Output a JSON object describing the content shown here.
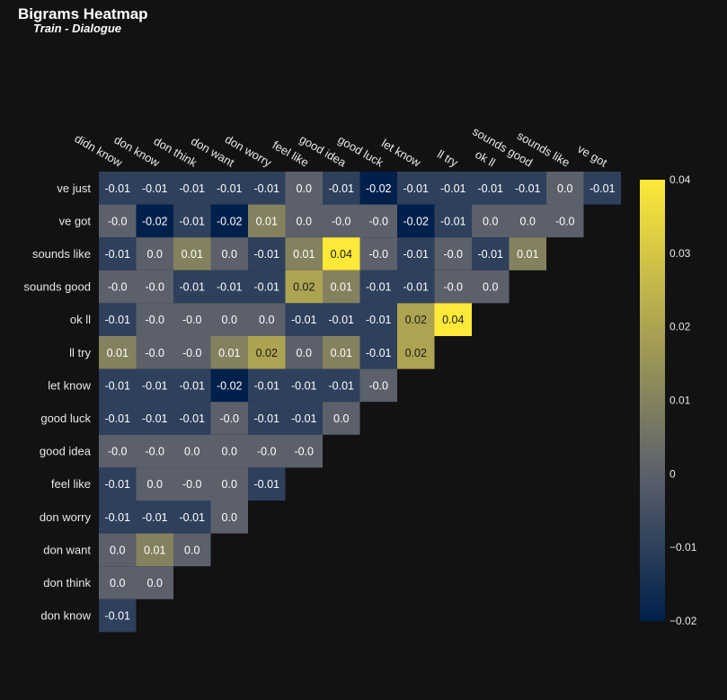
{
  "chart_data": {
    "type": "heatmap",
    "title": "Bigrams Heatmap",
    "subtitle": "Train - Dialogue",
    "x_categories": [
      "didn know",
      "don know",
      "don think",
      "don want",
      "don worry",
      "feel like",
      "good idea",
      "good luck",
      "let know",
      "ll try",
      "ok ll",
      "sounds good",
      "sounds like",
      "ve got"
    ],
    "y_categories": [
      "ve just",
      "ve got",
      "sounds like",
      "sounds good",
      "ok ll",
      "ll try",
      "let know",
      "good luck",
      "good idea",
      "feel like",
      "don worry",
      "don want",
      "don think",
      "don know"
    ],
    "values": [
      [
        -0.01,
        -0.01,
        -0.01,
        -0.01,
        -0.01,
        0.0,
        -0.01,
        -0.02,
        -0.01,
        -0.01,
        -0.01,
        -0.01,
        0.0,
        -0.01
      ],
      [
        -0.0,
        -0.02,
        -0.01,
        -0.02,
        0.01,
        0.0,
        -0.0,
        -0.0,
        -0.02,
        -0.01,
        0.0,
        0.0,
        -0.0
      ],
      [
        -0.01,
        0.0,
        0.01,
        0.0,
        -0.01,
        0.01,
        0.04,
        -0.0,
        -0.01,
        -0.0,
        -0.01,
        0.01
      ],
      [
        -0.0,
        -0.0,
        -0.01,
        -0.01,
        -0.01,
        0.02,
        0.01,
        -0.01,
        -0.01,
        -0.0,
        0.0
      ],
      [
        -0.01,
        -0.0,
        -0.0,
        0.0,
        0.0,
        -0.01,
        -0.01,
        -0.01,
        0.02,
        0.04
      ],
      [
        0.01,
        -0.0,
        -0.0,
        0.01,
        0.02,
        0.0,
        0.01,
        -0.01,
        0.02
      ],
      [
        -0.01,
        -0.01,
        -0.01,
        -0.02,
        -0.01,
        -0.01,
        -0.01,
        -0.0
      ],
      [
        -0.01,
        -0.01,
        -0.01,
        -0.0,
        -0.01,
        -0.01,
        0.0
      ],
      [
        -0.0,
        -0.0,
        0.0,
        0.0,
        -0.0,
        -0.0
      ],
      [
        -0.01,
        0.0,
        -0.0,
        0.0,
        -0.01
      ],
      [
        -0.01,
        -0.01,
        -0.01,
        0.0
      ],
      [
        0.0,
        0.01,
        0.0
      ],
      [
        0.0,
        0.0
      ],
      [
        -0.01
      ]
    ],
    "colorscale": [
      "#00204c",
      "#5b606b",
      "#fee838"
    ],
    "zmin": -0.02,
    "zmax": 0.04,
    "colorbar_ticks": [
      {
        "value": 0.04,
        "label": "0.04"
      },
      {
        "value": 0.03,
        "label": "0.03"
      },
      {
        "value": 0.02,
        "label": "0.02"
      },
      {
        "value": 0.01,
        "label": "0.01"
      },
      {
        "value": 0,
        "label": "0"
      },
      {
        "value": -0.01,
        "label": "−0.01"
      },
      {
        "value": -0.02,
        "label": "−0.02"
      }
    ]
  }
}
